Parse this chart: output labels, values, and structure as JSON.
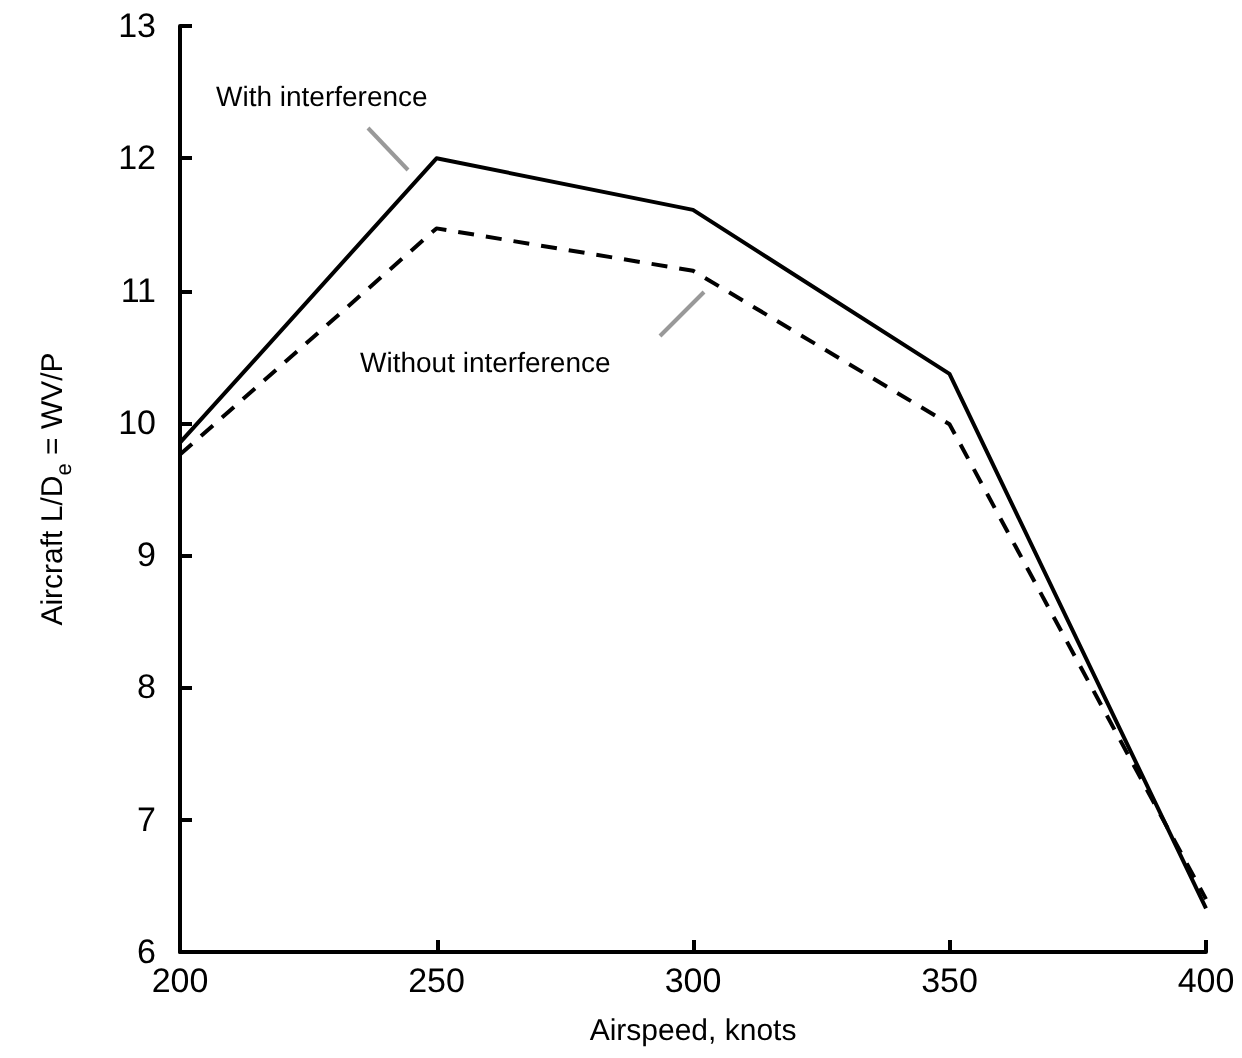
{
  "chart_data": {
    "type": "line",
    "xlabel": "Airspeed, knots",
    "ylabel": "Aircraft L/D$_{e}$ = WV/P",
    "x": [
      200,
      250,
      300,
      350,
      400
    ],
    "xlim": [
      200,
      400
    ],
    "xticks": [
      200,
      250,
      300,
      350,
      400
    ],
    "ylim": [
      6,
      13
    ],
    "yticks": [
      6,
      7,
      8,
      9,
      10,
      11,
      12,
      13
    ],
    "grid": false,
    "marker": "none",
    "series": [
      {
        "color": "#000000",
        "line_style": "solid",
        "values": [
          9.85,
          12.0,
          11.61,
          10.37,
          6.33
        ]
      },
      {
        "color": "#000000",
        "line_style": "dashed",
        "values": [
          9.76,
          11.47,
          11.15,
          9.99,
          6.4
        ]
      }
    ],
    "annotations": [
      "With interference",
      "Without interference"
    ]
  }
}
